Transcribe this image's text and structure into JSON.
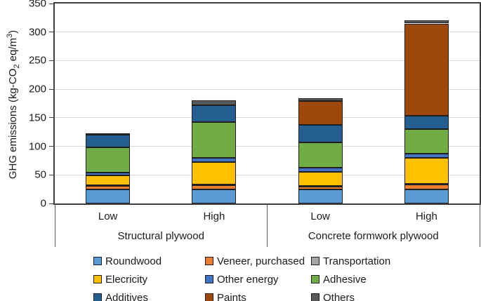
{
  "figure": {
    "y_axis": {
      "title_parts": {
        "prefix": "GHG emissions (kg-CO",
        "sub": "2",
        "mid": " eq/m",
        "sup": "3",
        "suffix": ")"
      },
      "ticks": [
        0,
        50,
        100,
        150,
        200,
        250,
        300,
        350
      ],
      "max": 350
    },
    "x_axis": {
      "groups": [
        {
          "label": "Structural plywood",
          "levels": [
            "Low",
            "High"
          ]
        },
        {
          "label": "Concrete formwork plywood",
          "levels": [
            "Low",
            "High"
          ]
        }
      ]
    },
    "colors": {
      "axis": "#3f3f3f",
      "gridline": "#d9d9d9",
      "segment_border": "#1f1f1f"
    }
  },
  "chart_data": {
    "type": "bar",
    "stacked": true,
    "title": "",
    "xlabel": "",
    "ylabel": "GHG emissions (kg-CO2 eq/m3)",
    "ylim": [
      0,
      350
    ],
    "grid": true,
    "legend_position": "bottom",
    "categories": [
      "Structural plywood - Low",
      "Structural plywood - High",
      "Concrete formwork plywood - Low",
      "Concrete formwork plywood - High"
    ],
    "series": [
      {
        "name": "Roundwood",
        "color": "#5B9BD5",
        "values": [
          25,
          25,
          24,
          24
        ]
      },
      {
        "name": "Veneer, purchased",
        "color": "#ED7D31",
        "values": [
          6,
          7,
          6,
          9
        ]
      },
      {
        "name": "Transportation",
        "color": "#A5A5A5",
        "values": [
          1,
          1,
          1,
          1
        ]
      },
      {
        "name": "Elecricity",
        "color": "#FFC000",
        "values": [
          17,
          40,
          24,
          46
        ]
      },
      {
        "name": "Other energy",
        "color": "#4472C4",
        "values": [
          5,
          7,
          8,
          7
        ]
      },
      {
        "name": "Adhesive",
        "color": "#70AD47",
        "values": [
          44,
          62,
          44,
          43
        ]
      },
      {
        "name": "Additives",
        "color": "#255E91",
        "values": [
          22,
          30,
          30,
          24
        ]
      },
      {
        "name": "Paints",
        "color": "#9E480E",
        "values": [
          0,
          0,
          42,
          161
        ]
      },
      {
        "name": "Others",
        "color": "#595959",
        "values": [
          3,
          8,
          5,
          5
        ]
      }
    ],
    "totals": [
      123,
      180,
      184,
      320
    ]
  }
}
